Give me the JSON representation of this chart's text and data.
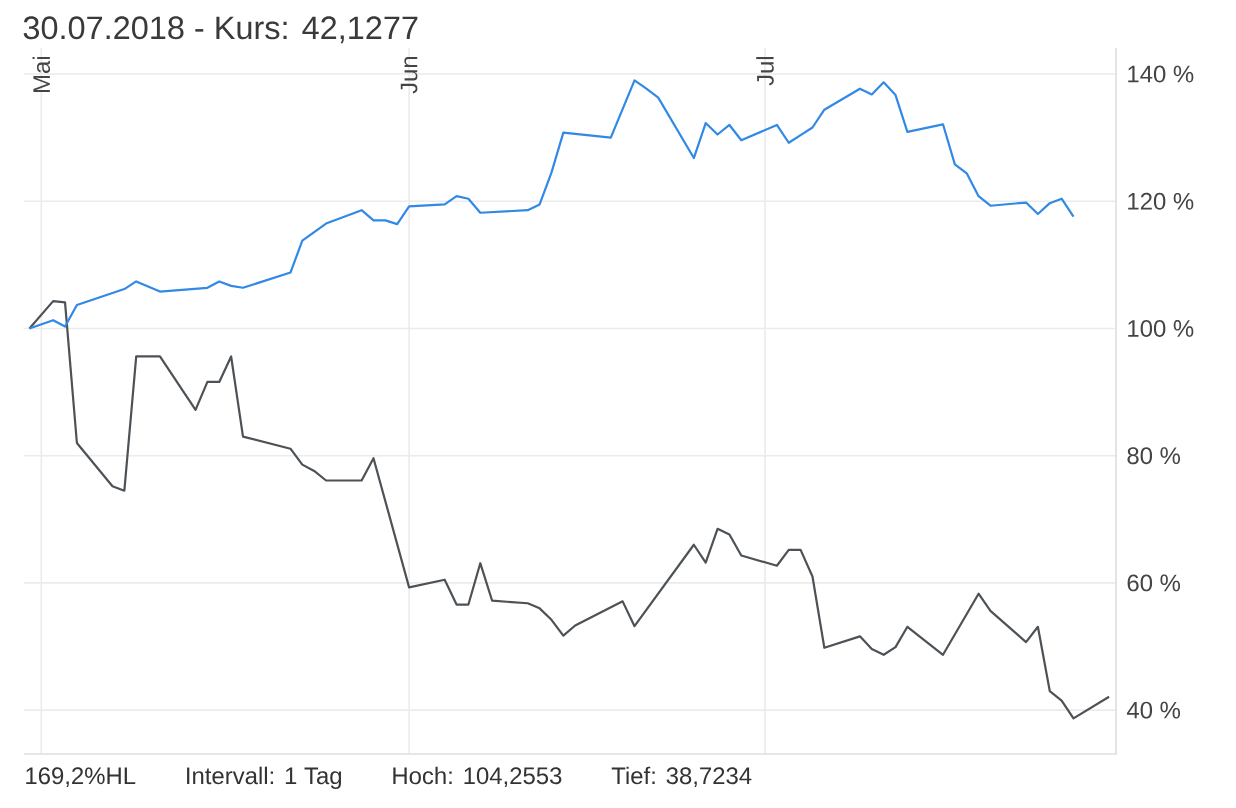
{
  "chart_data": {
    "type": "line",
    "title": "30.07.2018 - Kurs: 42,1277",
    "annotations": [
      "169,2%HL",
      "Intervall: 1 Tag",
      "Hoch: 104,2553",
      "Tief: 38,7234"
    ],
    "xlim": [
      "2018-04-29T13:00",
      "2018-07-30T14:00"
    ],
    "xticks": [
      {
        "value": "2018-05-01",
        "label": "Mai"
      },
      {
        "value": "2018-06-01",
        "label": "Jun"
      },
      {
        "value": "2018-07-01",
        "label": "Jul"
      }
    ],
    "ylim": [
      33.1,
      144.1
    ],
    "yticks": [
      {
        "value": 40,
        "label": "40 %"
      },
      {
        "value": 60,
        "label": "60 %"
      },
      {
        "value": 80,
        "label": "80 %"
      },
      {
        "value": 100,
        "label": "100 %"
      },
      {
        "value": 120,
        "label": "120 %"
      },
      {
        "value": 140,
        "label": "140 %"
      }
    ],
    "grid": true,
    "series": [
      {
        "color": "#4d5257",
        "x": [
          "2018-04-30",
          "2018-05-02",
          "2018-05-03",
          "2018-05-04",
          "2018-05-07",
          "2018-05-08",
          "2018-05-09",
          "2018-05-11",
          "2018-05-14",
          "2018-05-15",
          "2018-05-16",
          "2018-05-17",
          "2018-05-18",
          "2018-05-22",
          "2018-05-23",
          "2018-05-24",
          "2018-05-25",
          "2018-05-28",
          "2018-05-29",
          "2018-06-01",
          "2018-06-04",
          "2018-06-05",
          "2018-06-06",
          "2018-06-07",
          "2018-06-08",
          "2018-06-11",
          "2018-06-12",
          "2018-06-13",
          "2018-06-14",
          "2018-06-15",
          "2018-06-19",
          "2018-06-20",
          "2018-06-25",
          "2018-06-26",
          "2018-06-27",
          "2018-06-28",
          "2018-06-29",
          "2018-07-02",
          "2018-07-03",
          "2018-07-04",
          "2018-07-05",
          "2018-07-06",
          "2018-07-09",
          "2018-07-10",
          "2018-07-11",
          "2018-07-12",
          "2018-07-13",
          "2018-07-16",
          "2018-07-19",
          "2018-07-20",
          "2018-07-23",
          "2018-07-24",
          "2018-07-25",
          "2018-07-26",
          "2018-07-27",
          "2018-07-30"
        ],
        "values": [
          100,
          104.3,
          104.1,
          82.0,
          75.2,
          74.5,
          95.6,
          95.6,
          87.2,
          91.6,
          91.6,
          95.6,
          83.0,
          81.1,
          78.6,
          77.6,
          76.1,
          76.1,
          79.6,
          59.3,
          60.5,
          56.6,
          56.6,
          63.1,
          57.2,
          56.8,
          56.0,
          54.2,
          51.7,
          53.3,
          57.1,
          53.2,
          66.0,
          63.2,
          68.5,
          67.6,
          64.3,
          62.7,
          65.2,
          65.2,
          61.0,
          49.8,
          51.6,
          49.6,
          48.7,
          49.9,
          53.1,
          48.7,
          58.3,
          55.6,
          50.7,
          53.1,
          43.0,
          41.5,
          38.7,
          42.1
        ]
      },
      {
        "color": "#3189e6",
        "x": [
          "2018-04-30",
          "2018-05-02",
          "2018-05-03",
          "2018-05-04",
          "2018-05-08",
          "2018-05-09",
          "2018-05-11",
          "2018-05-15",
          "2018-05-16",
          "2018-05-17",
          "2018-05-18",
          "2018-05-22",
          "2018-05-23",
          "2018-05-25",
          "2018-05-28",
          "2018-05-29",
          "2018-05-30",
          "2018-05-31",
          "2018-06-01",
          "2018-06-04",
          "2018-06-05",
          "2018-06-06",
          "2018-06-07",
          "2018-06-11",
          "2018-06-12",
          "2018-06-13",
          "2018-06-14",
          "2018-06-18",
          "2018-06-20",
          "2018-06-21",
          "2018-06-22",
          "2018-06-25",
          "2018-06-26",
          "2018-06-27",
          "2018-06-28",
          "2018-06-29",
          "2018-07-02",
          "2018-07-03",
          "2018-07-04",
          "2018-07-05",
          "2018-07-06",
          "2018-07-09",
          "2018-07-10",
          "2018-07-11",
          "2018-07-12",
          "2018-07-13",
          "2018-07-16",
          "2018-07-17",
          "2018-07-18",
          "2018-07-19",
          "2018-07-20",
          "2018-07-23",
          "2018-07-24",
          "2018-07-25",
          "2018-07-26",
          "2018-07-27"
        ],
        "values": [
          100,
          101.3,
          100.3,
          103.7,
          106.2,
          107.4,
          105.8,
          106.4,
          107.4,
          106.7,
          106.4,
          108.8,
          113.8,
          116.5,
          118.6,
          117.0,
          117.0,
          116.4,
          119.2,
          119.5,
          120.8,
          120.4,
          118.2,
          118.6,
          119.5,
          124.5,
          130.8,
          130.0,
          139.0,
          137.7,
          136.3,
          126.8,
          132.3,
          130.5,
          132.0,
          129.6,
          132.0,
          129.2,
          130.4,
          131.6,
          134.4,
          137.7,
          136.8,
          138.7,
          136.7,
          130.9,
          132.1,
          125.8,
          124.4,
          120.8,
          119.3,
          119.8,
          118.0,
          119.7,
          120.4,
          117.6
        ]
      }
    ]
  }
}
